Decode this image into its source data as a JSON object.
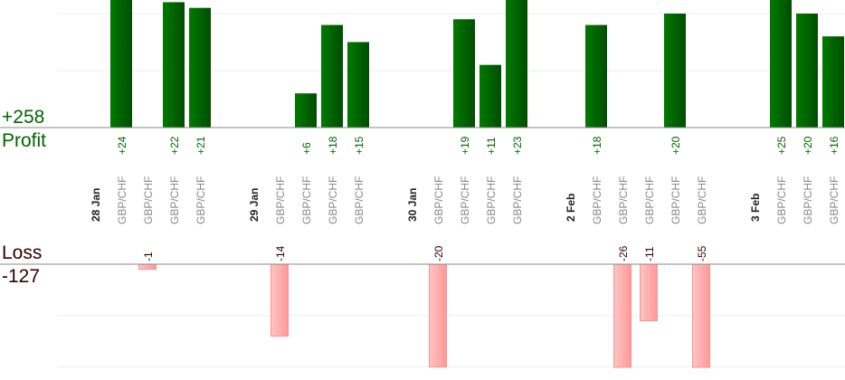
{
  "chart_data": {
    "type": "bar",
    "profit": {
      "label": "Profit",
      "total": "+258",
      "color": "#006600",
      "gridline_step": 10
    },
    "loss": {
      "label": "Loss",
      "total": "-127",
      "color": "#ff9999",
      "label_color": "#330000",
      "gridline_step": 10
    },
    "columns": [
      {
        "date": "28 Jan"
      },
      {
        "pair": "GBP/CHF",
        "value": 24
      },
      {
        "pair": "GBP/CHF",
        "value": -1
      },
      {
        "pair": "GBP/CHF",
        "value": 22
      },
      {
        "pair": "GBP/CHF",
        "value": 21
      },
      {
        "date": "29 Jan"
      },
      {
        "pair": "GBP/CHF",
        "value": -14
      },
      {
        "pair": "GBP/CHF",
        "value": 6
      },
      {
        "pair": "GBP/CHF",
        "value": 18
      },
      {
        "pair": "GBP/CHF",
        "value": 15
      },
      {
        "date": "30 Jan"
      },
      {
        "pair": "GBP/CHF",
        "value": -20
      },
      {
        "pair": "GBP/CHF",
        "value": 19
      },
      {
        "pair": "GBP/CHF",
        "value": 11
      },
      {
        "pair": "GBP/CHF",
        "value": 23
      },
      {
        "date": "2 Feb"
      },
      {
        "pair": "GBP/CHF",
        "value": 18
      },
      {
        "pair": "GBP/CHF",
        "value": -26
      },
      {
        "pair": "GBP/CHF",
        "value": -11
      },
      {
        "pair": "GBP/CHF",
        "value": 20
      },
      {
        "pair": "GBP/CHF",
        "value": -55
      },
      {
        "date": "3 Feb"
      },
      {
        "pair": "GBP/CHF",
        "value": 25
      },
      {
        "pair": "GBP/CHF",
        "value": 20
      },
      {
        "pair": "GBP/CHF",
        "value": 16
      }
    ]
  }
}
